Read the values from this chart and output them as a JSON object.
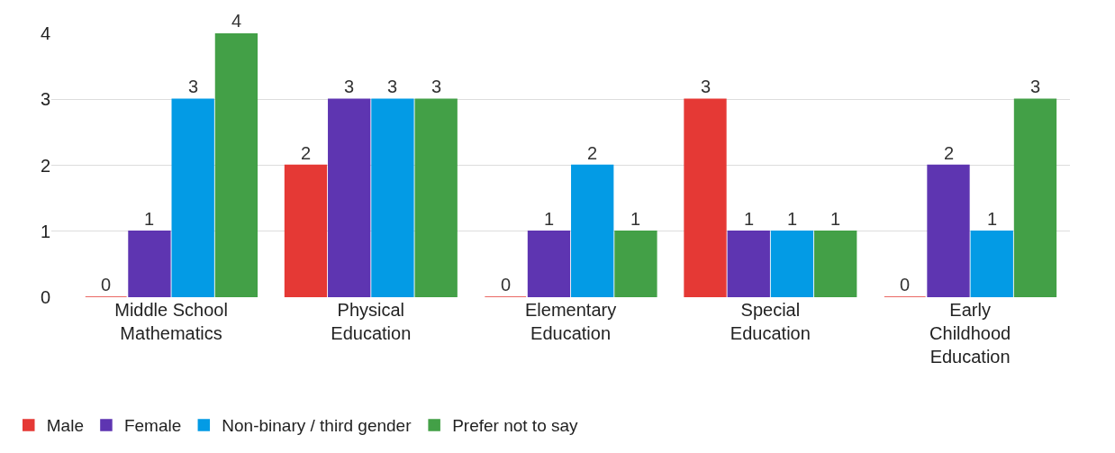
{
  "chart_data": {
    "type": "bar",
    "categories": [
      "Middle School Mathematics",
      "Physical Education",
      "Elementary Education",
      "Special Education",
      "Early Childhood Education"
    ],
    "series": [
      {
        "name": "Male",
        "color": "#e53935",
        "values": [
          0,
          2,
          0,
          3,
          0
        ]
      },
      {
        "name": "Female",
        "color": "#5e35b1",
        "values": [
          1,
          3,
          1,
          1,
          2
        ]
      },
      {
        "name": "Non-binary / third gender",
        "color": "#039be5",
        "values": [
          3,
          3,
          2,
          1,
          1
        ]
      },
      {
        "name": "Prefer not to say",
        "color": "#43a047",
        "values": [
          4,
          3,
          1,
          1,
          3
        ]
      }
    ],
    "ylim": [
      0,
      4
    ],
    "yticks": [
      0,
      1,
      2,
      3,
      4
    ],
    "grid": "y",
    "legend": "bottom",
    "data_labels": true
  }
}
